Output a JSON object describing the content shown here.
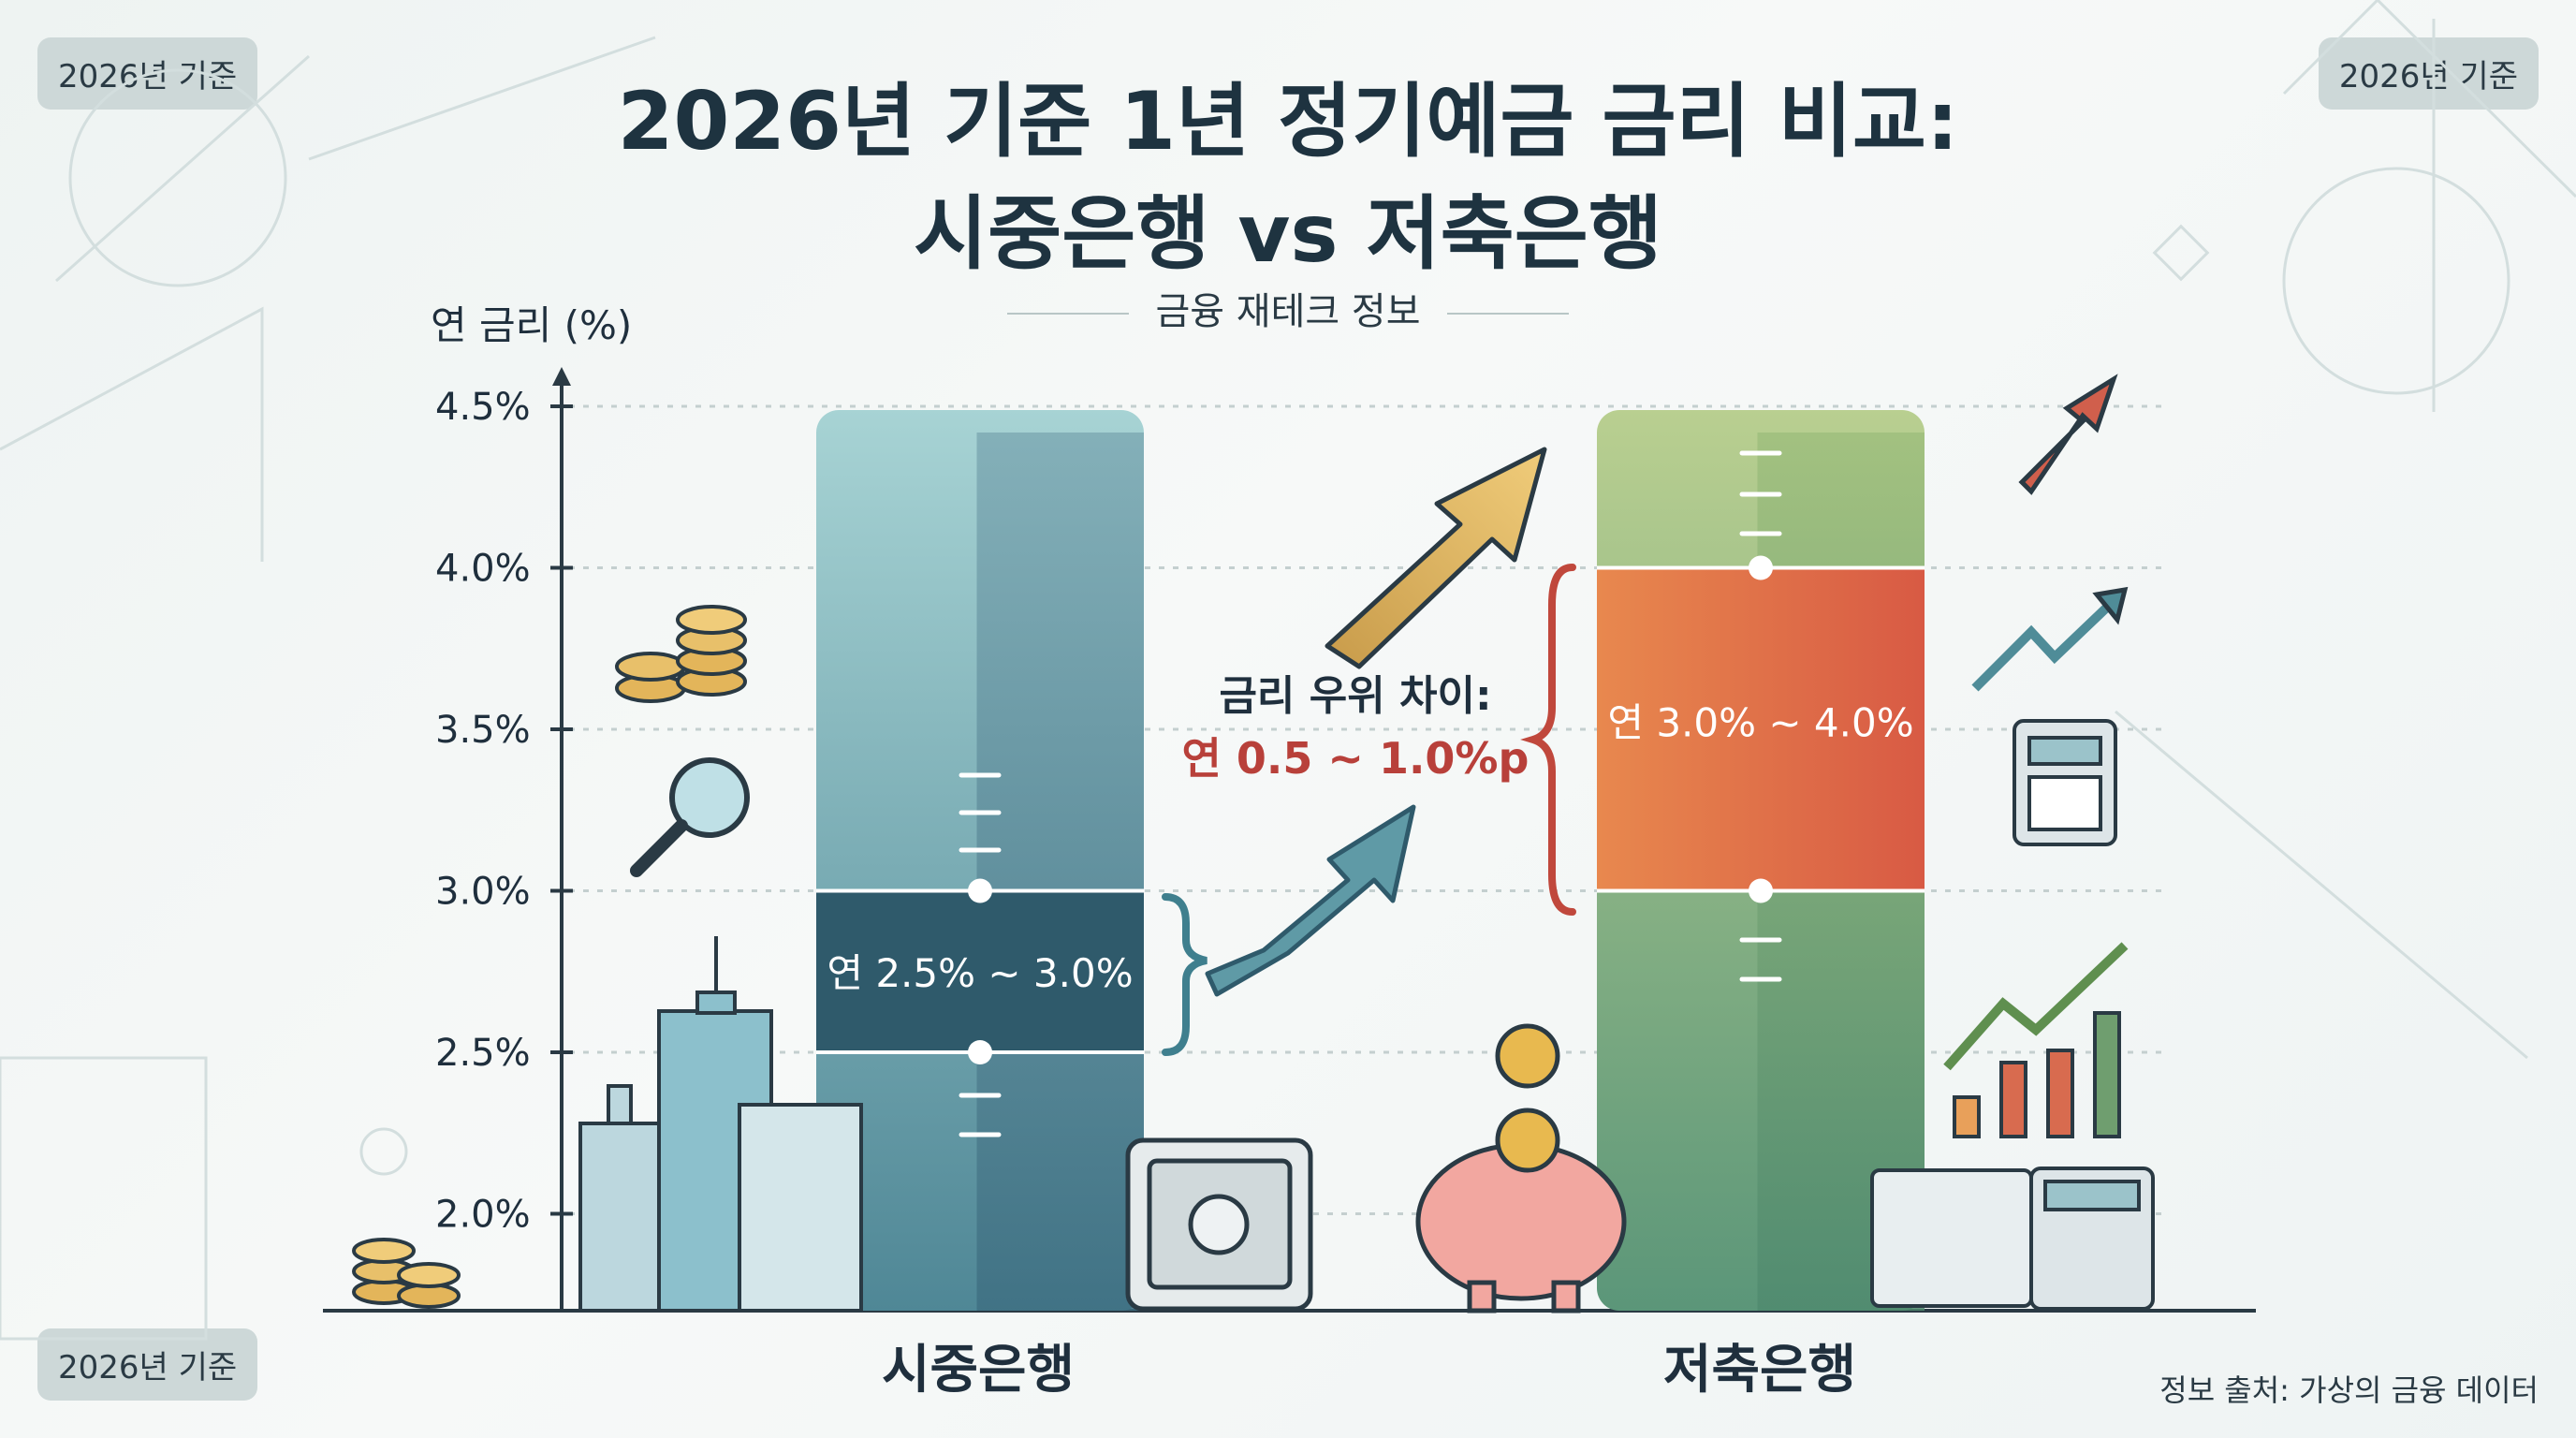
{
  "badges": {
    "top_left": "2026년 기준",
    "top_right": "2026년 기준",
    "bottom_left": "2026년 기준"
  },
  "title_line1": "2026년 기준 1년 정기예금 금리 비교:",
  "title_line2": "시중은행 vs 저축은행",
  "subtitle": "금융 재테크 정보",
  "source": "정보 출처: 가상의 금융 데이터",
  "colors": {
    "bank_bar": "#5d95a0",
    "bank_range": "#2f5a6b",
    "savings_bar": "#8fb07a",
    "savings_range": "#e0704a",
    "diff_text": "#b8403a",
    "arrow_gold": "#d8b15a",
    "arrow_teal": "#4f8c98"
  },
  "chart_data": {
    "type": "bar",
    "ylabel": "연 금리 (%)",
    "ylim": [
      1.7,
      4.5
    ],
    "yticks": [
      4.5,
      4.0,
      3.5,
      3.0,
      2.5,
      2.0
    ],
    "ytick_labels": [
      "4.5%",
      "4.0%",
      "3.5%",
      "3.0%",
      "2.5%",
      "2.0%"
    ],
    "grid": true,
    "categories": [
      "시중은행",
      "저축은행"
    ],
    "ranges": [
      {
        "category": "시중은행",
        "low": 2.5,
        "high": 3.0,
        "label": "연 2.5% ~ 3.0%"
      },
      {
        "category": "저축은행",
        "low": 3.0,
        "high": 4.0,
        "label": "연 3.0% ~ 4.0%"
      }
    ],
    "annotation": {
      "line1": "금리 우위 차이:",
      "line2": "연 0.5 ~ 1.0%p"
    }
  }
}
